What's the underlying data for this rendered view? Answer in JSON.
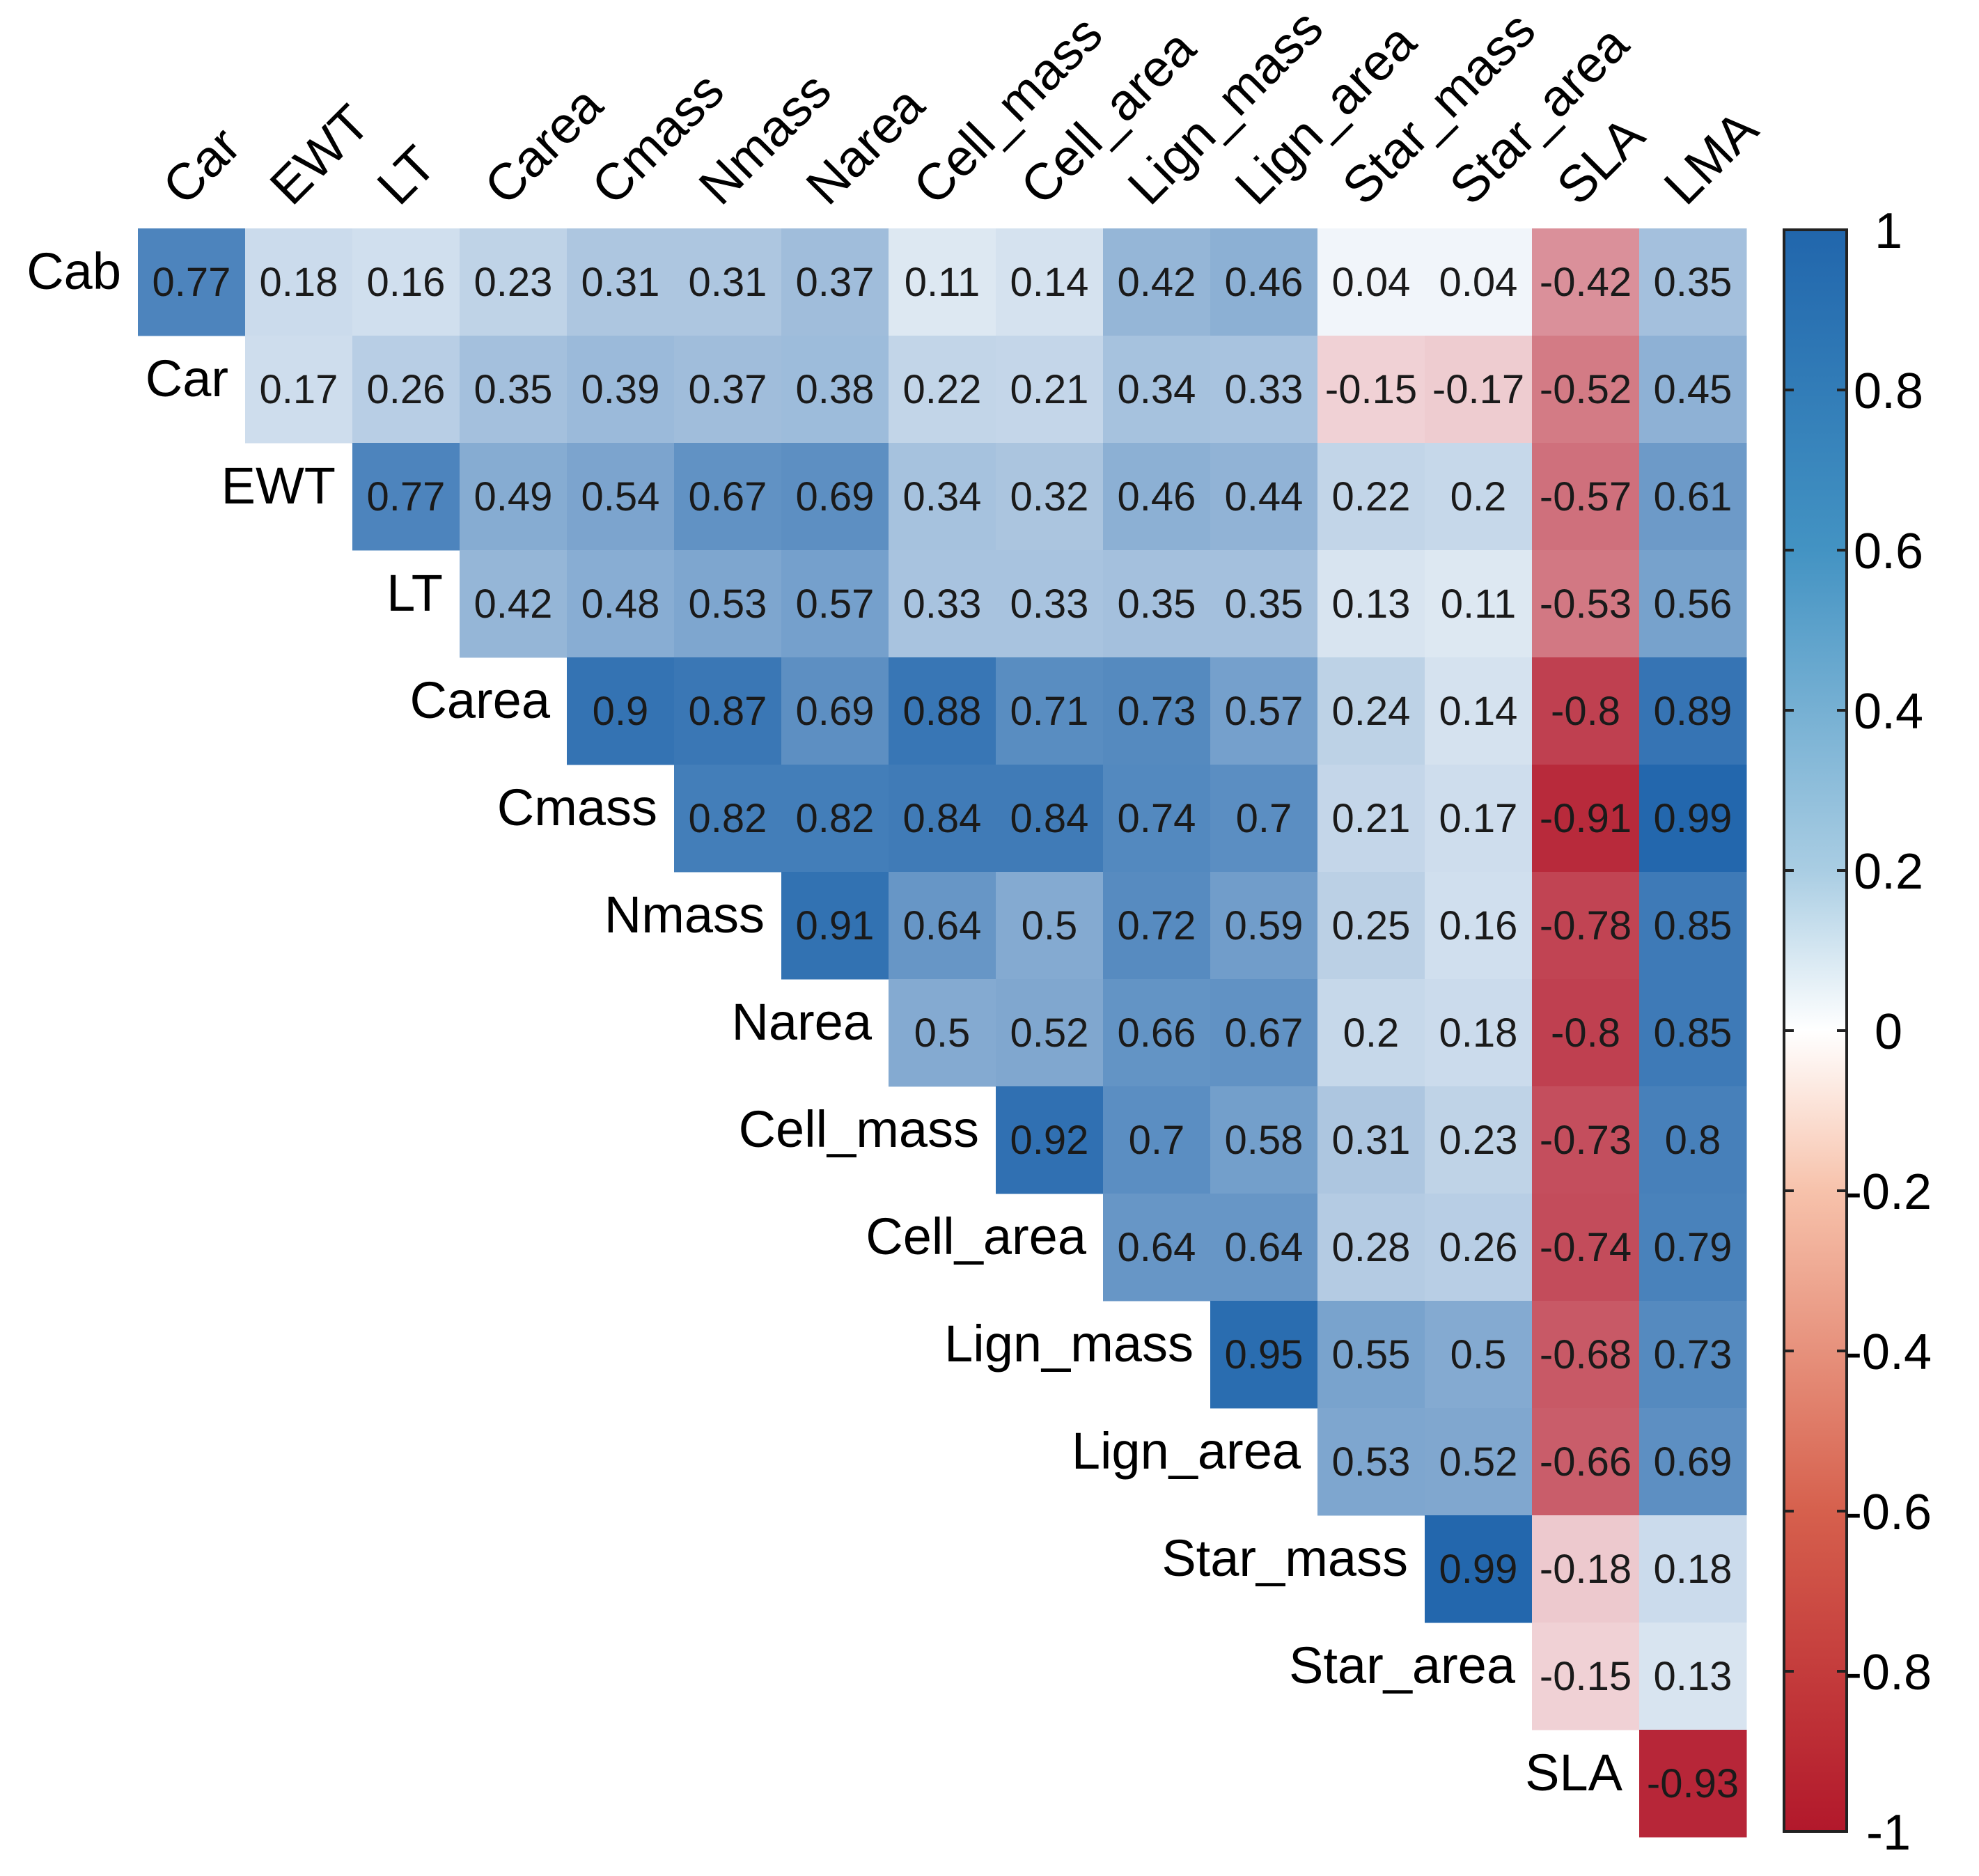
{
  "chart_data": {
    "type": "heatmap",
    "subtype": "correlation-upper-triangle",
    "row_labels": [
      "Cab",
      "Car",
      "EWT",
      "LT",
      "Carea",
      "Cmass",
      "Nmass",
      "Narea",
      "Cell_mass",
      "Cell_area",
      "Lign_mass",
      "Lign_area",
      "Star_mass",
      "Star_area",
      "SLA"
    ],
    "col_labels": [
      "Car",
      "EWT",
      "LT",
      "Carea",
      "Cmass",
      "Nmass",
      "Narea",
      "Cell_mass",
      "Cell_area",
      "Lign_mass",
      "Lign_area",
      "Star_mass",
      "Star_area",
      "SLA",
      "LMA"
    ],
    "values": [
      [
        0.77,
        0.18,
        0.16,
        0.23,
        0.31,
        0.31,
        0.37,
        0.11,
        0.14,
        0.42,
        0.46,
        0.04,
        0.04,
        -0.42,
        0.35
      ],
      [
        null,
        0.17,
        0.26,
        0.35,
        0.39,
        0.37,
        0.38,
        0.22,
        0.21,
        0.34,
        0.33,
        -0.15,
        -0.17,
        -0.52,
        0.45
      ],
      [
        null,
        null,
        0.77,
        0.49,
        0.54,
        0.67,
        0.69,
        0.34,
        0.32,
        0.46,
        0.44,
        0.22,
        0.2,
        -0.57,
        0.61
      ],
      [
        null,
        null,
        null,
        0.42,
        0.48,
        0.53,
        0.57,
        0.33,
        0.33,
        0.35,
        0.35,
        0.13,
        0.11,
        -0.53,
        0.56
      ],
      [
        null,
        null,
        null,
        null,
        0.9,
        0.87,
        0.69,
        0.88,
        0.71,
        0.73,
        0.57,
        0.24,
        0.14,
        -0.8,
        0.89
      ],
      [
        null,
        null,
        null,
        null,
        null,
        0.82,
        0.82,
        0.84,
        0.84,
        0.74,
        0.7,
        0.21,
        0.17,
        -0.91,
        0.99
      ],
      [
        null,
        null,
        null,
        null,
        null,
        null,
        0.91,
        0.64,
        0.5,
        0.72,
        0.59,
        0.25,
        0.16,
        -0.78,
        0.85
      ],
      [
        null,
        null,
        null,
        null,
        null,
        null,
        null,
        0.5,
        0.52,
        0.66,
        0.67,
        0.2,
        0.18,
        -0.8,
        0.85
      ],
      [
        null,
        null,
        null,
        null,
        null,
        null,
        null,
        null,
        0.92,
        0.7,
        0.58,
        0.31,
        0.23,
        -0.73,
        0.8
      ],
      [
        null,
        null,
        null,
        null,
        null,
        null,
        null,
        null,
        null,
        0.64,
        0.64,
        0.28,
        0.26,
        -0.74,
        0.79
      ],
      [
        null,
        null,
        null,
        null,
        null,
        null,
        null,
        null,
        null,
        null,
        0.95,
        0.55,
        0.5,
        -0.68,
        0.73
      ],
      [
        null,
        null,
        null,
        null,
        null,
        null,
        null,
        null,
        null,
        null,
        null,
        0.53,
        0.52,
        -0.66,
        0.69
      ],
      [
        null,
        null,
        null,
        null,
        null,
        null,
        null,
        null,
        null,
        null,
        null,
        null,
        0.99,
        -0.18,
        0.18
      ],
      [
        null,
        null,
        null,
        null,
        null,
        null,
        null,
        null,
        null,
        null,
        null,
        null,
        null,
        -0.15,
        0.13
      ],
      [
        null,
        null,
        null,
        null,
        null,
        null,
        null,
        null,
        null,
        null,
        null,
        null,
        null,
        null,
        -0.93
      ]
    ],
    "color_scale": {
      "range": [
        -1,
        1
      ],
      "colors": [
        "#b2182b",
        "#ffffff",
        "#2166ac"
      ],
      "ticks": [
        "1",
        "0.8",
        "0.6",
        "0.4",
        "0.2",
        "0",
        "-0.2",
        "-0.4",
        "-0.6",
        "-0.8",
        "-1"
      ]
    },
    "legend_position": "right"
  }
}
